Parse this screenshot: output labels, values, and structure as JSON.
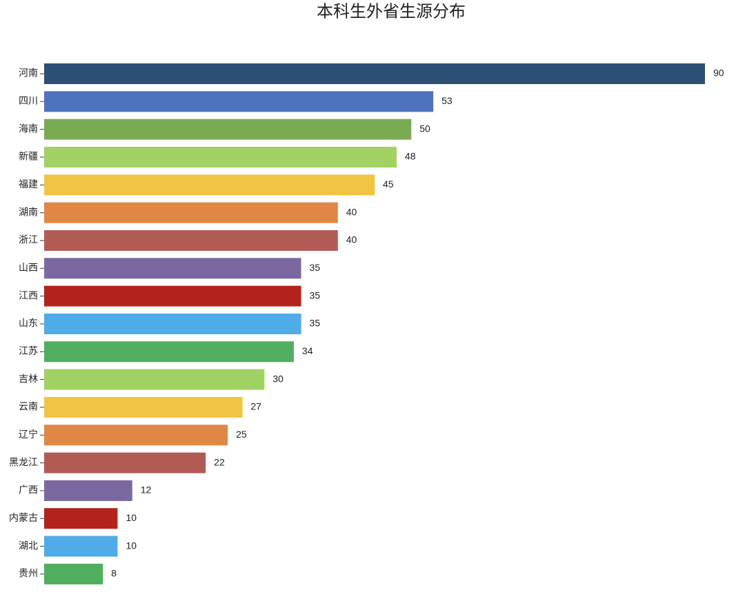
{
  "chart_data": {
    "type": "hbar",
    "title": "本科生外省生源分布",
    "categories": [
      "河南",
      "四川",
      "海南",
      "新疆",
      "福建",
      "湖南",
      "浙江",
      "山西",
      "江西",
      "山东",
      "江苏",
      "吉林",
      "云南",
      "辽宁",
      "黑龙江",
      "广西",
      "内蒙古",
      "湖北",
      "贵州"
    ],
    "values": [
      90,
      53,
      50,
      48,
      45,
      40,
      40,
      35,
      35,
      35,
      34,
      30,
      27,
      25,
      22,
      12,
      10,
      10,
      8
    ],
    "colors": [
      "#2d4f73",
      "#4e72be",
      "#7aaa52",
      "#a1d162",
      "#f2c443",
      "#e08746",
      "#b25b55",
      "#7b68a0",
      "#b3231b",
      "#50ace8",
      "#4faf5e",
      "#a1d162",
      "#f2c443",
      "#e08746",
      "#b25b55",
      "#7b68a0",
      "#b3231b",
      "#50ace8",
      "#4faf5e"
    ],
    "xlim": [
      0,
      90
    ]
  }
}
